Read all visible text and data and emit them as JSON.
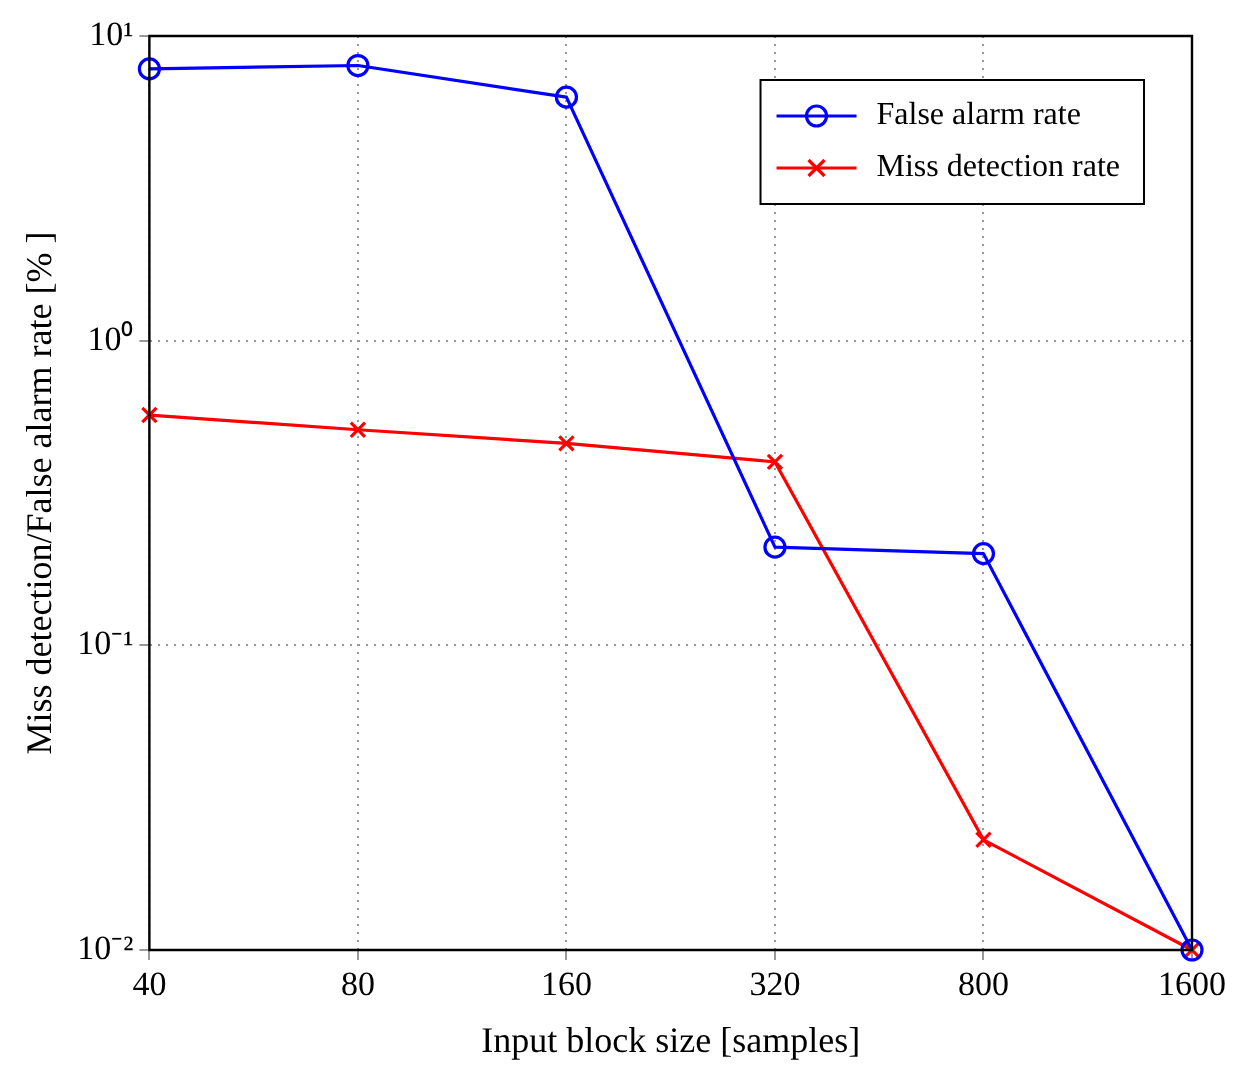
{
  "chart_data": {
    "type": "line",
    "xlabel": "Input block size [samples]",
    "ylabel": "Miss detection/False alarm rate [% ]",
    "categories": [
      "40",
      "80",
      "160",
      "320",
      "800",
      "1600"
    ],
    "series": [
      {
        "name": "False alarm rate",
        "color": "#0000ff",
        "marker": "circle",
        "values": [
          7.8,
          8.0,
          6.3,
          0.21,
          0.2,
          0.01
        ]
      },
      {
        "name": "Miss detection rate",
        "color": "#ff0000",
        "marker": "cross",
        "values": [
          0.57,
          0.51,
          0.46,
          0.4,
          0.023,
          0.01
        ]
      }
    ],
    "log": "y",
    "ylim": [
      0.01,
      10
    ],
    "yticks": [
      {
        "value": 0.01,
        "label": "10⁻²"
      },
      {
        "value": 0.1,
        "label": "10⁻¹"
      },
      {
        "value": 1,
        "label": "10⁰"
      },
      {
        "value": 10,
        "label": "10¹"
      }
    ],
    "grid": true,
    "legend": "top right",
    "line_style": "solid"
  }
}
